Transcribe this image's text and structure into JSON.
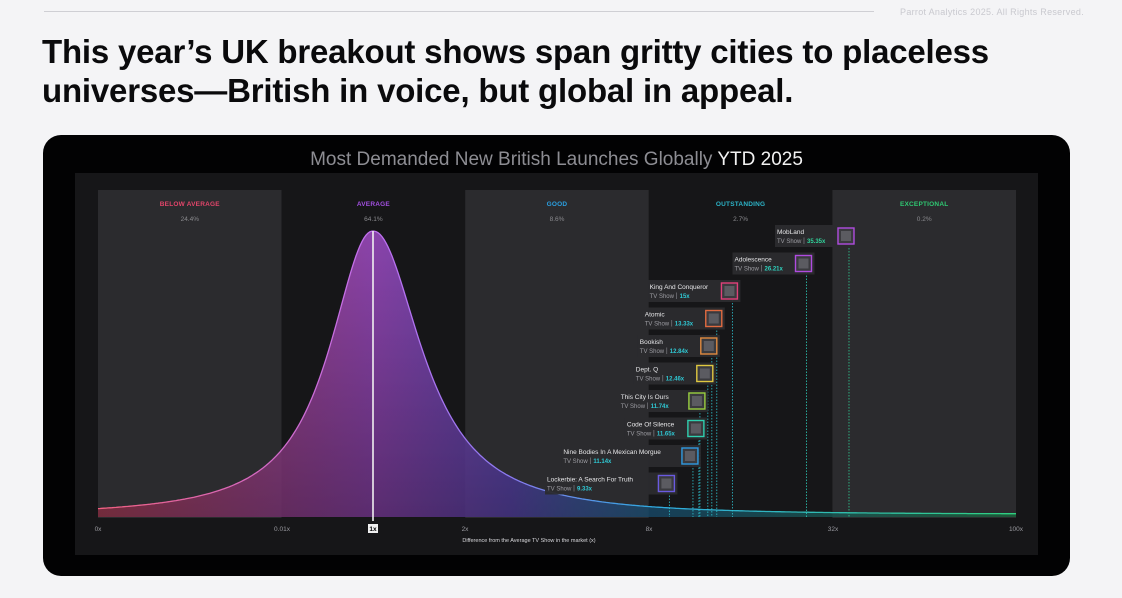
{
  "copyright": "Parrot Analytics 2025. All Rights Reserved.",
  "headline": "This year’s UK breakout shows span gritty cities to placeless universes—British in voice, but global in appeal.",
  "chart_data": {
    "type": "area",
    "title_prefix": "Most Demanded New British Launches Globally",
    "title_highlight": "YTD 2025",
    "xlabel": "Difference from the Average TV Show in the market (x)",
    "x_ticks": [
      "0x",
      "0.01x",
      "1x",
      "2x",
      "8x",
      "32x",
      "100x"
    ],
    "highlight_tick": "1x",
    "bands": [
      {
        "name": "BELOW AVERAGE",
        "share": "24.4%",
        "color": "#e2456a"
      },
      {
        "name": "AVERAGE",
        "share": "64.1%",
        "color": "#a24fe0"
      },
      {
        "name": "GOOD",
        "share": "8.6%",
        "color": "#2b9fe0"
      },
      {
        "name": "OUTSTANDING",
        "share": "2.7%",
        "color": "#2cb4c8"
      },
      {
        "name": "EXCEPTIONAL",
        "share": "0.2%",
        "color": "#2fc872"
      }
    ],
    "shows": [
      {
        "name": "MobLand",
        "type": "TV Show",
        "value": "35.35x",
        "demand": 35.35,
        "accent": "#b04ce0",
        "valcolor": "#2fd49b"
      },
      {
        "name": "Adolescence",
        "type": "TV Show",
        "value": "26.21x",
        "demand": 26.21,
        "accent": "#b04ce0",
        "valcolor": "#2fd4c0"
      },
      {
        "name": "King And Conqueror",
        "type": "TV Show",
        "value": "15x",
        "demand": 15,
        "accent": "#e0407a",
        "valcolor": "#2fc8d4"
      },
      {
        "name": "Atomic",
        "type": "TV Show",
        "value": "13.33x",
        "demand": 13.33,
        "accent": "#e06a40",
        "valcolor": "#2fc8d4"
      },
      {
        "name": "Bookish",
        "type": "TV Show",
        "value": "12.84x",
        "demand": 12.84,
        "accent": "#e08a40",
        "valcolor": "#2fc8d4"
      },
      {
        "name": "Dept. Q",
        "type": "TV Show",
        "value": "12.46x",
        "demand": 12.46,
        "accent": "#e0c840",
        "valcolor": "#2fc8d4"
      },
      {
        "name": "This City Is Ours",
        "type": "TV Show",
        "value": "11.74x",
        "demand": 11.74,
        "accent": "#9ad040",
        "valcolor": "#2fc8d4"
      },
      {
        "name": "Code Of Silence",
        "type": "TV Show",
        "value": "11.65x",
        "demand": 11.65,
        "accent": "#2fd0b0",
        "valcolor": "#2fc8d4"
      },
      {
        "name": "Nine Bodies In A Mexican Morgue",
        "type": "TV Show",
        "value": "11.14x",
        "demand": 11.14,
        "accent": "#2f9ae0",
        "valcolor": "#2fc8d4"
      },
      {
        "name": "Lockerbie: A Search For Truth",
        "type": "TV Show",
        "value": "9.33x",
        "demand": 9.33,
        "accent": "#6a5ae0",
        "valcolor": "#2fc8d4"
      }
    ]
  }
}
